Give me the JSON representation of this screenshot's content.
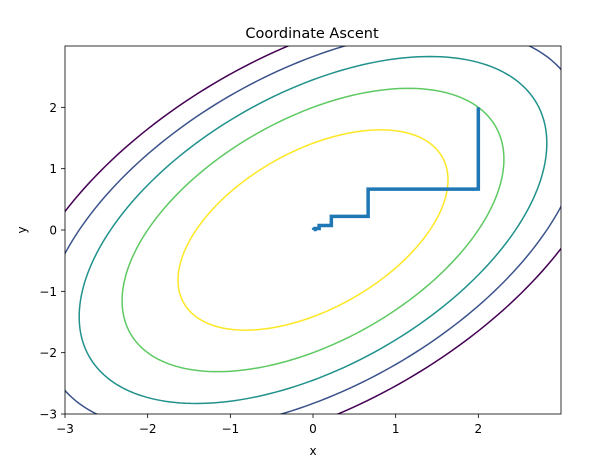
{
  "chart_data": {
    "type": "line",
    "title": "Coordinate Ascent",
    "xlabel": "x",
    "ylabel": "y",
    "xlim": [
      -3,
      3
    ],
    "ylim": [
      -3,
      3
    ],
    "x_ticks": [
      -3,
      -2,
      -1,
      0,
      1,
      2
    ],
    "y_ticks": [
      -3,
      -2,
      -1,
      0,
      1,
      2
    ],
    "x_tick_labels": [
      "−3",
      "−2",
      "−1",
      "0",
      "1",
      "2"
    ],
    "y_tick_labels": [
      "−3",
      "−2",
      "−1",
      "0",
      "1",
      "2"
    ],
    "grid": false,
    "legend": "none",
    "contour": {
      "function": "-(x^2 - x*y + y^2)",
      "levels": [
        -10,
        -8,
        -6,
        -4,
        -2
      ],
      "colors": [
        "#440154",
        "#3b528b",
        "#21918c",
        "#5ec962",
        "#fde725"
      ]
    },
    "series": [
      {
        "color": "#1f77b4",
        "x": [
          2,
          2,
          0.667,
          0.667,
          0.222,
          0.222,
          0.074,
          0.074,
          0.025,
          0.025,
          0.008,
          0.008
        ],
        "y": [
          2,
          0.667,
          0.667,
          0.222,
          0.222,
          0.074,
          0.074,
          0.025,
          0.025,
          0.008,
          0.008,
          0.003
        ]
      }
    ]
  }
}
